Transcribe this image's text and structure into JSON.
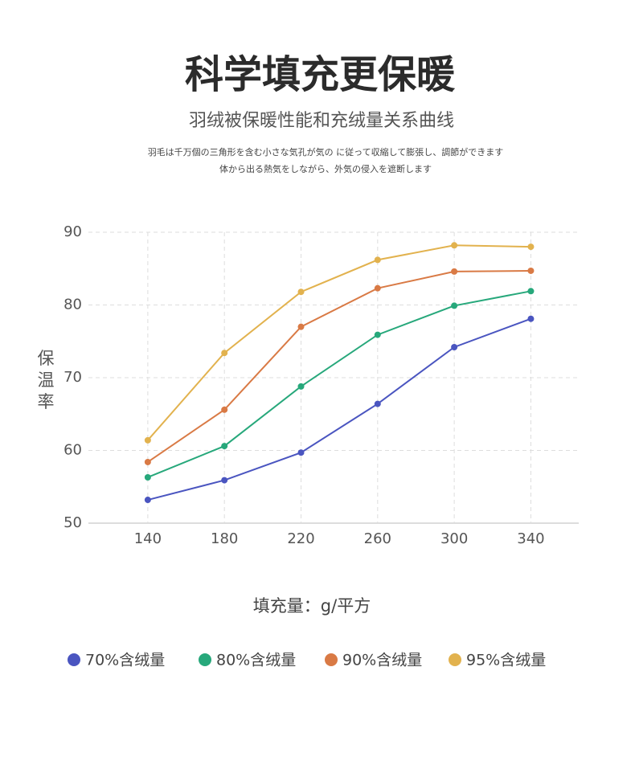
{
  "chart_data": {
    "type": "line",
    "title": "科学填充更保暖",
    "subtitle": "羽绒被保暖性能和充绒量关系曲线",
    "description": [
      "羽毛は千万個の三角形を含む小さな気孔が気の に従って収縮して膨張し、調節ができます",
      "体から出る熱気をしながら、外気の侵入を遮断します"
    ],
    "y_label": "保温率",
    "x_label": "填充量：g/平方",
    "x": [
      140,
      180,
      220,
      260,
      300,
      340
    ],
    "xlim": [
      109,
      365
    ],
    "xticks": [
      140,
      180,
      220,
      260,
      300,
      340
    ],
    "ylim": [
      50,
      90
    ],
    "yticks": [
      50,
      60,
      70,
      80,
      90
    ],
    "grid": true,
    "series": [
      {
        "name": "70%含绒量",
        "color": "#4a55c0",
        "values": [
          53.2,
          55.9,
          59.7,
          66.4,
          74.2,
          78.1
        ]
      },
      {
        "name": "80%含绒量",
        "color": "#27a87b",
        "values": [
          56.3,
          60.6,
          68.8,
          75.9,
          79.9,
          81.9
        ]
      },
      {
        "name": "90%含绒量",
        "color": "#d97a45",
        "values": [
          58.4,
          65.6,
          77.0,
          82.3,
          84.6,
          84.7
        ]
      },
      {
        "name": "95%含绒量",
        "color": "#e2b24e",
        "values": [
          61.4,
          73.4,
          81.8,
          86.2,
          88.2,
          88.0
        ]
      }
    ]
  }
}
